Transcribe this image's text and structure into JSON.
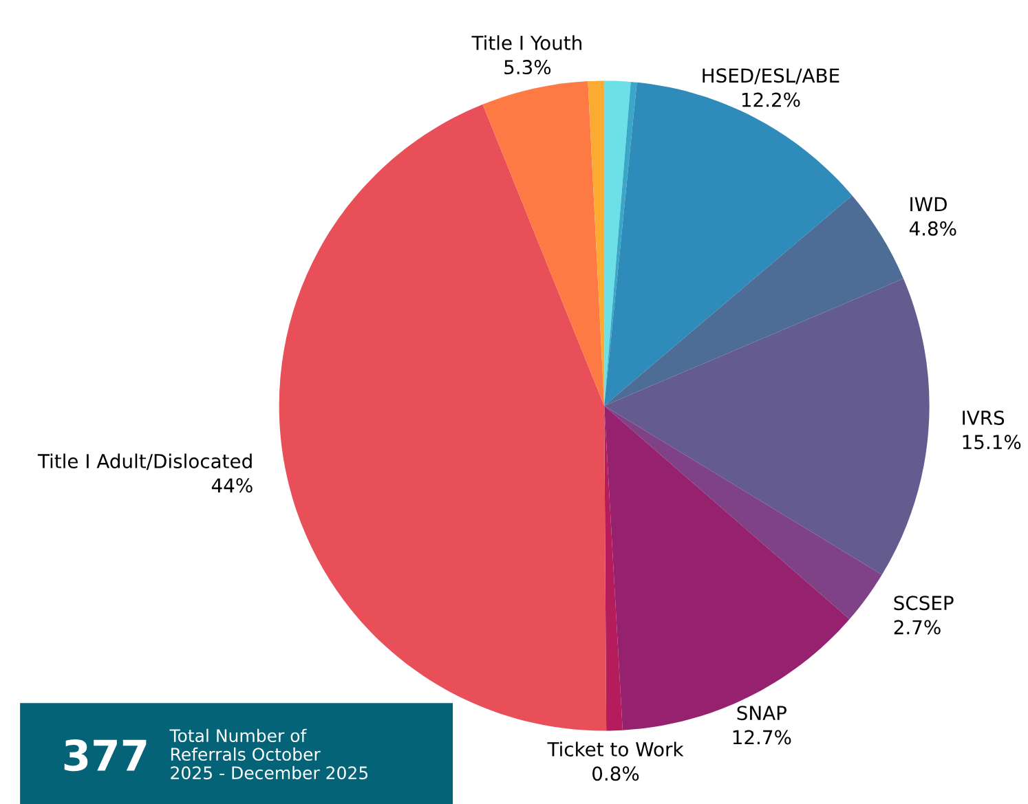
{
  "chart_data": {
    "type": "pie",
    "categories": [
      null,
      null,
      "HSED/ESL/ABE",
      "IWD",
      "IVRS",
      "SCSEP",
      "SNAP",
      "Ticket to Work",
      "Title I Adult/Dislocated",
      "Title I Youth",
      null
    ],
    "values": [
      1.3,
      0.3,
      12.2,
      4.8,
      15.1,
      2.7,
      12.7,
      0.8,
      44,
      5.3,
      0.8
    ],
    "value_labels": [
      null,
      null,
      "12.2%",
      "4.8%",
      "15.1%",
      "2.7%",
      "12.7%",
      "0.8%",
      "44%",
      "5.3%",
      null
    ],
    "colors": [
      "#6ce0e6",
      "#3aa6c8",
      "#2e8bba",
      "#4d6d96",
      "#645b8f",
      "#7f4287",
      "#96216e",
      "#b51c5c",
      "#e84f58",
      "#fe7a45",
      "#fbaa32"
    ],
    "legend": false,
    "annotations": [
      "377",
      "Total Number of\nReferrals October\n2025 - December 2025"
    ]
  }
}
